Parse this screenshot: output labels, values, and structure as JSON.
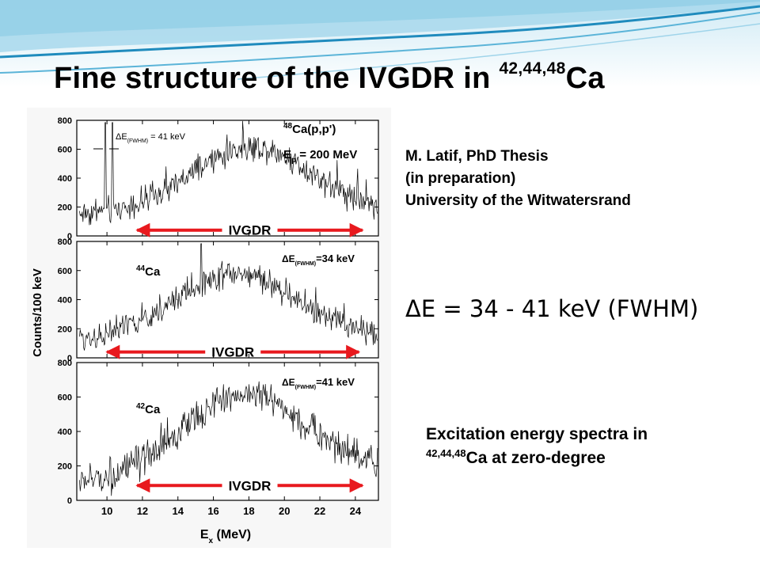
{
  "slide": {
    "title": {
      "text": "Fine structure of the IVGDR in ",
      "isotopes": "42,44,48",
      "element": "Ca"
    },
    "attribution": [
      "M. Latif, PhD Thesis",
      "(in preparation)",
      "University of the Witwatersrand"
    ],
    "resolution_text": "ΔE = 34 - 41 keV  (FWHM)",
    "caption": {
      "line1": "Excitation energy spectra in",
      "isotopes": "42,44,48",
      "line2_rest": "Ca at zero-degree"
    },
    "colors": {
      "arrow": "#e8191e",
      "wave_dark": "#1f8bbd",
      "wave_light": "#a8d8ec",
      "trace": "#000000"
    }
  },
  "chart_data": {
    "type": "line",
    "xlabel": "E",
    "xlabel_sub": "x",
    "xlabel_unit": " (MeV)",
    "ylabel": "Counts/100 keV",
    "xlim": [
      8.3,
      25.3
    ],
    "xticks": [
      "10",
      "12",
      "14",
      "16",
      "18",
      "20",
      "22",
      "24"
    ],
    "xtick_values": [
      10,
      12,
      14,
      16,
      18,
      20,
      22,
      24
    ],
    "panels": [
      {
        "nucleus_mass": "48",
        "nucleus_label": "Ca(p,p')",
        "beam_sym": "E",
        "beam_sub": "p",
        "beam_text": " = 200 MeV",
        "de_sym": "ΔE",
        "de_sub": "(FWHM)",
        "de_text": " = 41 keV",
        "ylim": [
          0,
          800
        ],
        "yticks": [
          "0",
          "200",
          "400",
          "600",
          "800"
        ],
        "ytick_values": [
          0,
          200,
          400,
          600,
          800
        ],
        "band_label": "IVGDR",
        "arrow_range": [
          11.7,
          24.4
        ],
        "peak_counts": 615,
        "peak_energy": 18.2,
        "spike_energies": [
          9.9,
          10.3
        ],
        "start_counts": 150,
        "end_counts": 180
      },
      {
        "nucleus_mass": "44",
        "nucleus_label": "Ca",
        "de_sym": "ΔE",
        "de_sub": "(FWHM)",
        "de_text": "=34 keV",
        "ylim": [
          0,
          800
        ],
        "yticks": [
          "0",
          "200",
          "400",
          "600",
          "800"
        ],
        "ytick_values": [
          0,
          200,
          400,
          600,
          800
        ],
        "band_label": "IVGDR",
        "arrow_range": [
          10.0,
          24.2
        ],
        "peak_counts": 580,
        "peak_energy": 17.2,
        "spike_energies": [
          15.3
        ],
        "start_counts": 120,
        "end_counts": 160
      },
      {
        "nucleus_mass": "42",
        "nucleus_label": "Ca",
        "de_sym": "ΔE",
        "de_sub": "(FWHM)",
        "de_text": "=41 keV",
        "ylim": [
          0,
          800
        ],
        "yticks": [
          "0",
          "200",
          "400",
          "600",
          "800"
        ],
        "ytick_values": [
          0,
          200,
          400,
          600,
          800
        ],
        "band_label": "IVGDR",
        "arrow_range": [
          11.7,
          24.4
        ],
        "peak_counts": 620,
        "peak_energy": 17.8,
        "spike_energies": [],
        "start_counts": 100,
        "end_counts": 200
      }
    ]
  }
}
